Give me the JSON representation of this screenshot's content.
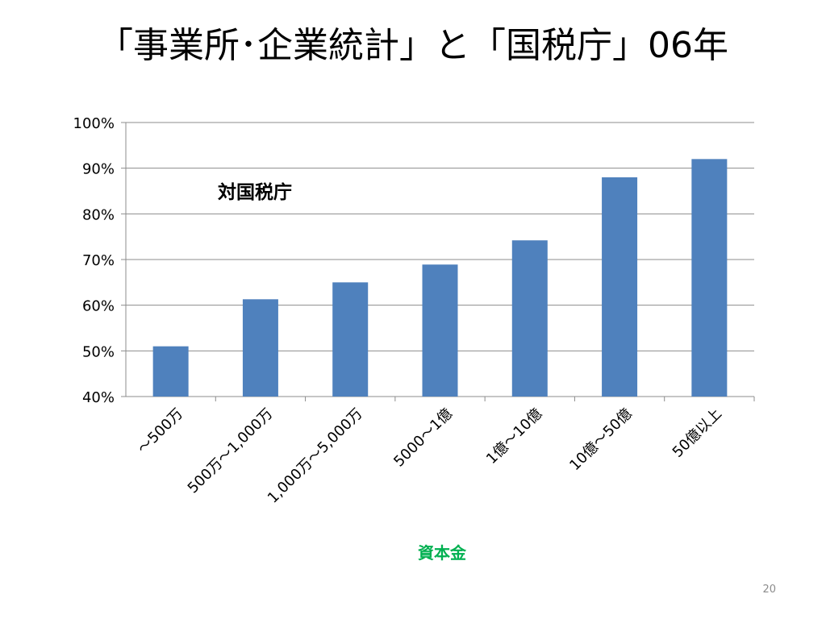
{
  "slide": {
    "title": "「事業所･企業統計」と「国税庁」06年",
    "page_number": "20"
  },
  "chart_data": {
    "type": "bar",
    "categories": [
      "～500万",
      "500万～1,000万",
      "1,000万～5,000万",
      "5000～1億",
      "1億～10億",
      "10億～50億",
      "50億以上"
    ],
    "values": [
      51,
      61.3,
      65,
      68.9,
      74.2,
      88,
      92
    ],
    "series": [
      {
        "values": [
          51,
          61.3,
          65,
          68.9,
          74.2,
          88,
          92
        ]
      }
    ],
    "annotation": "対国税庁",
    "xlabel": "資本金",
    "ylabel": "",
    "ylim": [
      40,
      100
    ],
    "yticks": [
      "40%",
      "50%",
      "60%",
      "70%",
      "80%",
      "90%",
      "100%"
    ],
    "grid": true,
    "colors": {
      "bar": "#4F81BD",
      "xlabel": "#00B050",
      "grid": "#8c8c8c"
    }
  }
}
